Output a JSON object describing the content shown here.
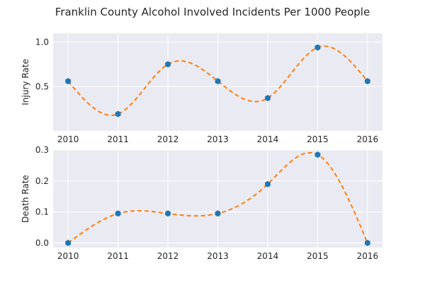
{
  "chart_data": {
    "title": "Franklin County Alcohol Involved Incidents Per 1000 People",
    "colors": {
      "background": "#eaeaf2",
      "grid": "#ffffff",
      "marker": "#1f77b4",
      "curve": "#ff7f0e"
    },
    "panels": [
      {
        "type": "scatter",
        "ylabel": "Injury Rate",
        "x": [
          2010,
          2011,
          2012,
          2013,
          2014,
          2015,
          2016
        ],
        "y": [
          0.56,
          0.19,
          0.75,
          0.56,
          0.37,
          0.94,
          0.56
        ],
        "xlim": [
          2009.7,
          2016.3
        ],
        "ylim": [
          0.0,
          1.1
        ],
        "yticks": [
          0.5,
          1.0
        ],
        "ytick_labels": [
          "0.5",
          "1.0"
        ],
        "xtick_labels": [
          "2010",
          "2011",
          "2012",
          "2013",
          "2014",
          "2015",
          "2016"
        ],
        "curve": "smooth dashed spline through points",
        "grid": true
      },
      {
        "type": "scatter",
        "ylabel": "Death Rate",
        "x": [
          2010,
          2011,
          2012,
          2013,
          2014,
          2015,
          2016
        ],
        "y": [
          0.0,
          0.095,
          0.095,
          0.095,
          0.19,
          0.285,
          0.0
        ],
        "xlim": [
          2009.7,
          2016.3
        ],
        "ylim": [
          -0.015,
          0.3
        ],
        "yticks": [
          0.0,
          0.1,
          0.2,
          0.3
        ],
        "ytick_labels": [
          "0.0",
          "0.1",
          "0.2",
          "0.3"
        ],
        "xtick_labels": [
          "2010",
          "2011",
          "2012",
          "2013",
          "2014",
          "2015",
          "2016"
        ],
        "curve": "smooth dashed spline through points",
        "grid": true
      }
    ]
  }
}
